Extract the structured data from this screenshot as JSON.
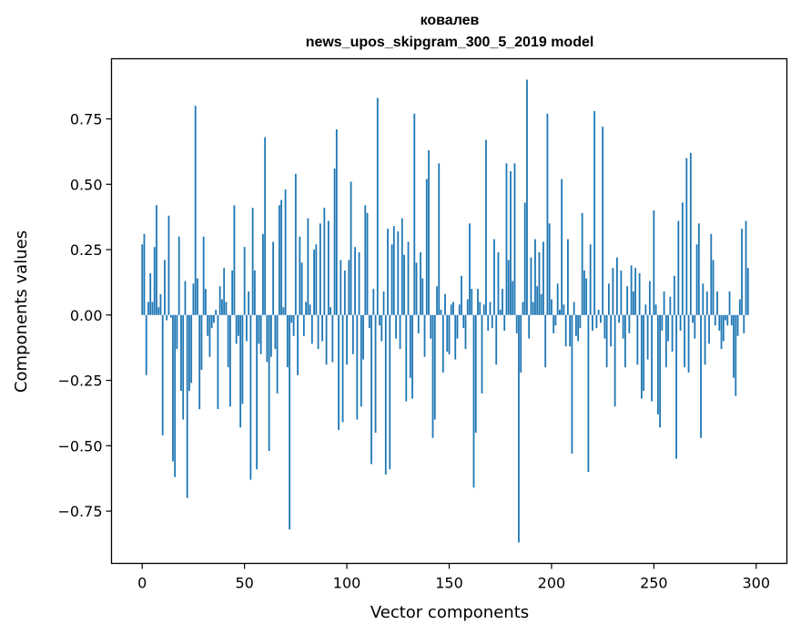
{
  "chart_data": {
    "type": "bar",
    "title": "ковалев",
    "subtitle": "news_upos_skipgram_300_5_2019 model",
    "xlabel": "Vector components",
    "ylabel": "Components values",
    "xlim": [
      -15,
      315
    ],
    "ylim": [
      -0.95,
      0.98
    ],
    "xticks": [
      0,
      50,
      100,
      150,
      200,
      250,
      300
    ],
    "xtick_labels": [
      "0",
      "50",
      "100",
      "150",
      "200",
      "250",
      "300"
    ],
    "yticks": [
      -0.75,
      -0.5,
      -0.25,
      0.0,
      0.25,
      0.5,
      0.75
    ],
    "ytick_labels": [
      "−0.75",
      "−0.50",
      "−0.25",
      "0.00",
      "0.25",
      "0.50",
      "0.75"
    ],
    "bar_color": "#1f77b4",
    "values": [
      0.27,
      0.31,
      -0.23,
      0.05,
      0.16,
      0.05,
      0.26,
      0.42,
      0.03,
      0.08,
      -0.46,
      0.21,
      -0.02,
      0.38,
      -0.01,
      -0.56,
      -0.62,
      -0.13,
      0.3,
      -0.29,
      -0.4,
      0.13,
      -0.7,
      -0.29,
      -0.26,
      0.12,
      0.8,
      0.14,
      -0.36,
      -0.21,
      0.3,
      0.1,
      -0.08,
      -0.16,
      -0.05,
      -0.03,
      0.02,
      -0.36,
      0.11,
      0.06,
      0.18,
      0.05,
      -0.2,
      -0.35,
      0.17,
      0.42,
      -0.11,
      -0.08,
      -0.43,
      -0.34,
      0.26,
      -0.1,
      0.09,
      -0.63,
      0.41,
      0.17,
      -0.59,
      -0.11,
      -0.15,
      0.31,
      0.68,
      -0.18,
      -0.52,
      -0.16,
      0.28,
      -0.13,
      -0.3,
      0.42,
      0.44,
      0.03,
      0.48,
      -0.2,
      -0.82,
      -0.03,
      -0.08,
      0.54,
      -0.23,
      0.3,
      0.2,
      -0.08,
      0.05,
      0.37,
      0.04,
      -0.11,
      0.25,
      0.27,
      -0.13,
      0.35,
      -0.1,
      0.41,
      -0.19,
      0.36,
      0.03,
      -0.18,
      0.56,
      0.71,
      -0.44,
      0.21,
      -0.41,
      0.17,
      -0.19,
      0.21,
      0.51,
      -0.15,
      0.26,
      -0.4,
      0.24,
      -0.35,
      -0.17,
      0.42,
      0.39,
      -0.05,
      -0.57,
      0.1,
      -0.45,
      0.83,
      -0.04,
      -0.1,
      0.09,
      -0.61,
      0.33,
      -0.59,
      0.27,
      0.34,
      -0.09,
      0.32,
      -0.13,
      0.37,
      0.23,
      -0.33,
      0.28,
      -0.24,
      -0.32,
      0.77,
      0.2,
      -0.07,
      0.24,
      0.14,
      -0.16,
      0.52,
      0.63,
      -0.09,
      -0.47,
      -0.4,
      0.11,
      0.58,
      0.02,
      -0.22,
      0.08,
      -0.14,
      -0.15,
      0.04,
      0.05,
      -0.17,
      -0.09,
      0.04,
      0.15,
      -0.05,
      -0.13,
      0.06,
      0.35,
      0.1,
      -0.66,
      -0.45,
      0.1,
      0.05,
      -0.3,
      0.04,
      0.67,
      -0.06,
      0.05,
      -0.05,
      0.29,
      -0.19,
      0.24,
      0.02,
      0.1,
      -0.06,
      0.58,
      0.21,
      0.55,
      0.13,
      0.58,
      -0.07,
      -0.87,
      -0.22,
      0.05,
      0.43,
      0.9,
      -0.09,
      0.22,
      0.05,
      0.29,
      0.11,
      0.24,
      0.08,
      0.28,
      -0.2,
      0.77,
      0.35,
      0.06,
      -0.07,
      -0.04,
      0.12,
      0.02,
      0.52,
      0.04,
      -0.12,
      0.29,
      -0.12,
      -0.53,
      0.05,
      -0.08,
      -0.1,
      -0.05,
      0.39,
      0.17,
      0.14,
      -0.6,
      0.27,
      -0.06,
      0.78,
      -0.05,
      0.02,
      -0.03,
      0.72,
      -0.09,
      -0.2,
      0.12,
      -0.12,
      0.18,
      -0.35,
      0.22,
      -0.03,
      0.17,
      -0.09,
      -0.2,
      0.11,
      -0.07,
      0.19,
      0.09,
      0.18,
      -0.19,
      0.16,
      -0.32,
      -0.29,
      0.04,
      -0.17,
      0.13,
      -0.33,
      0.4,
      0.04,
      -0.38,
      -0.43,
      -0.06,
      0.09,
      -0.2,
      -0.1,
      0.07,
      -0.14,
      0.15,
      -0.55,
      0.36,
      -0.06,
      0.43,
      -0.2,
      0.6,
      -0.22,
      0.62,
      -0.03,
      -0.09,
      0.27,
      0.35,
      -0.47,
      0.12,
      -0.19,
      0.09,
      -0.11,
      0.31,
      0.21,
      -0.04,
      0.09,
      -0.06,
      -0.13,
      -0.1,
      -0.02,
      -0.04,
      0.09,
      -0.04,
      -0.24,
      -0.31,
      -0.08,
      0.06,
      0.33,
      -0.07,
      0.36,
      0.18
    ]
  }
}
